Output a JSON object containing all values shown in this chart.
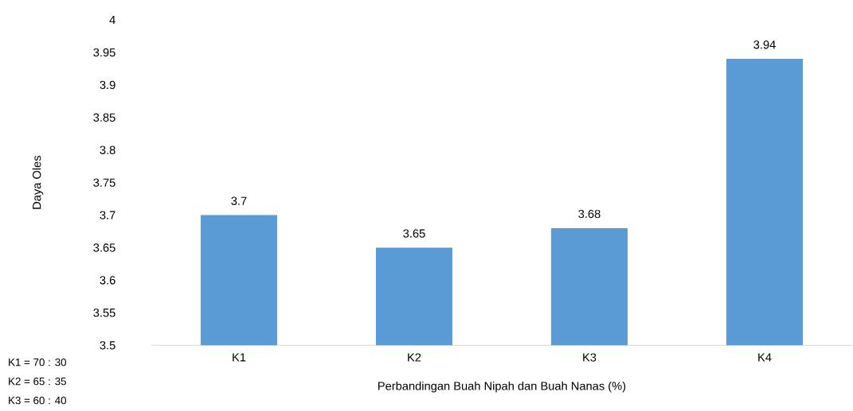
{
  "chart_data": {
    "type": "bar",
    "xlabel": "Perbandingan Buah Nipah dan Buah Nanas (%)",
    "ylabel": "Daya Oles",
    "categories": [
      "K1",
      "K2",
      "K3",
      "K4"
    ],
    "values": [
      3.7,
      3.65,
      3.68,
      3.94
    ],
    "color": "#5b9bd5",
    "ylim": [
      3.5,
      4
    ],
    "yticks": [
      3.5,
      3.55,
      3.6,
      3.65,
      3.7,
      3.75,
      3.8,
      3.85,
      3.9,
      3.95,
      4
    ],
    "data_labels": true,
    "grid": false,
    "annotations": [
      "K1 = 70 : 30",
      "K2 = 65 : 35",
      "K3 = 60 : 40"
    ]
  }
}
